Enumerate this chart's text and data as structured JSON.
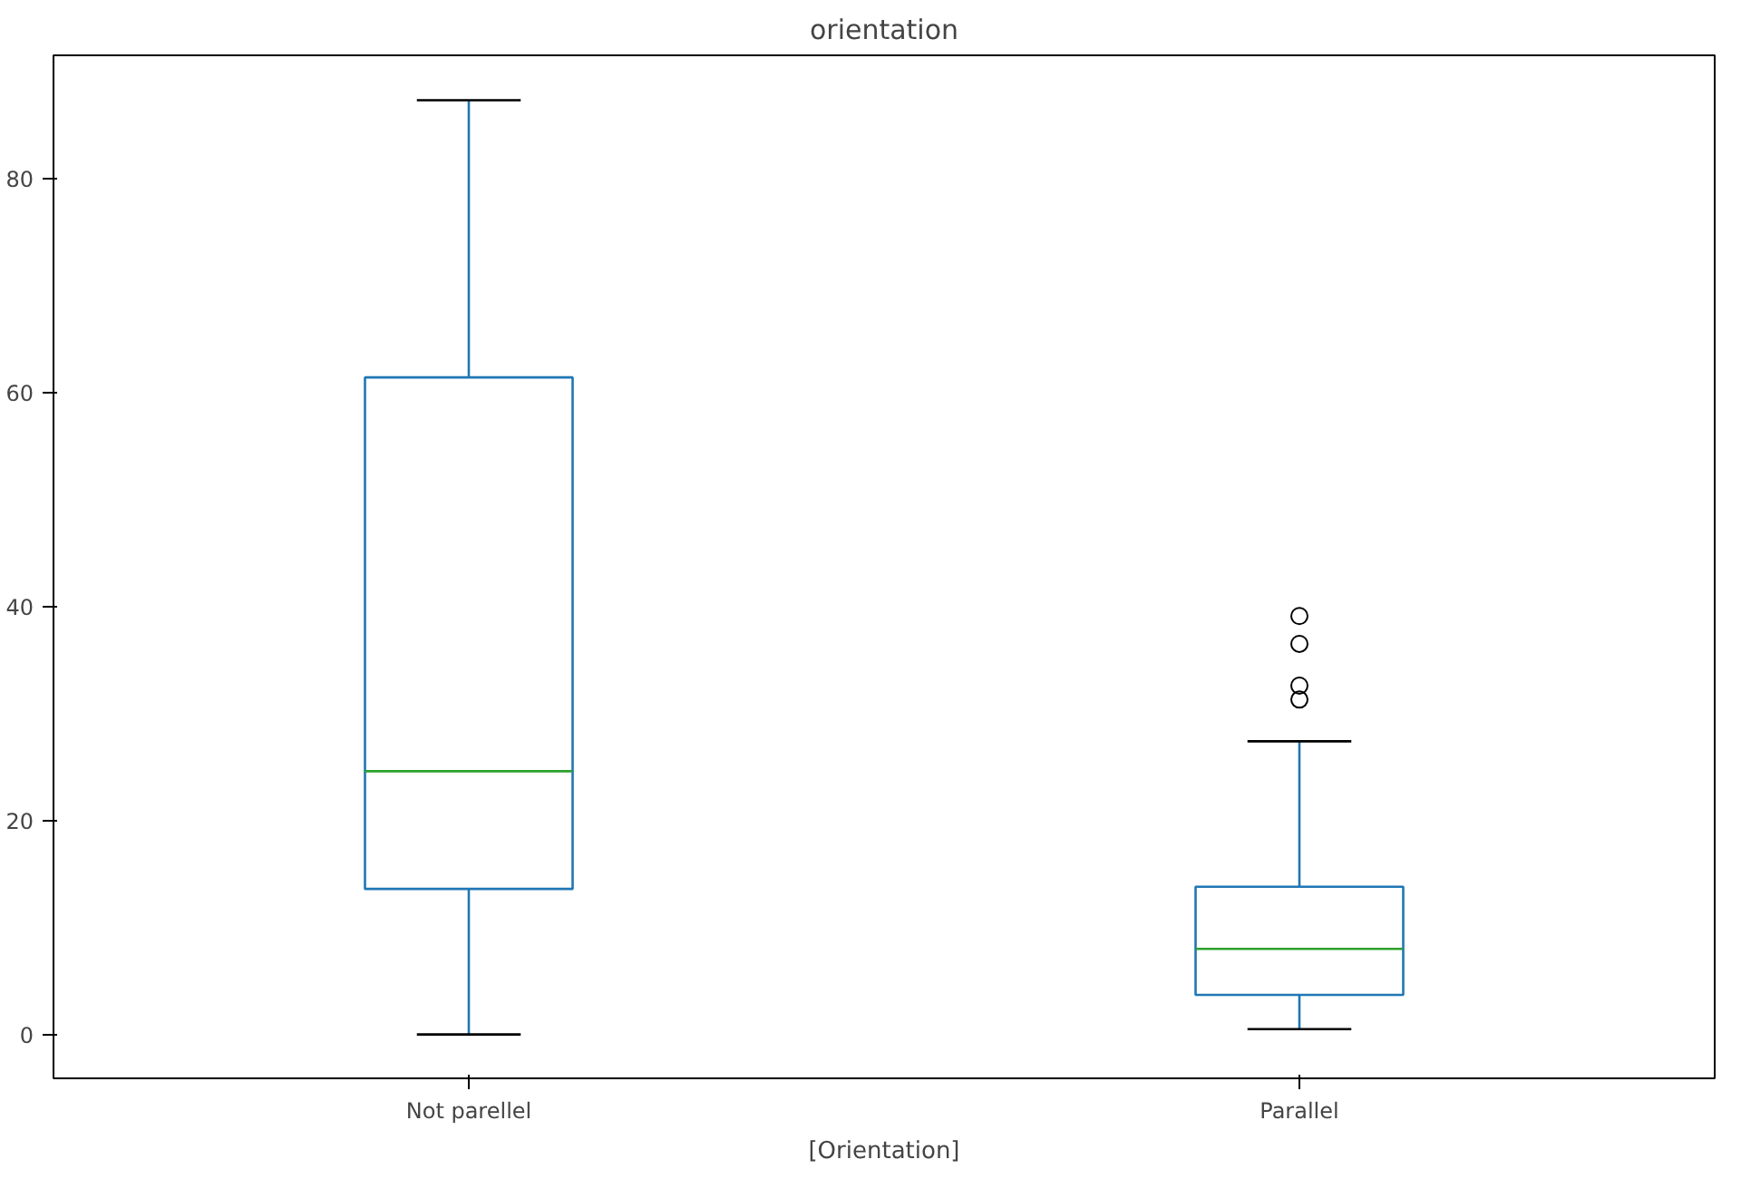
{
  "chart_data": {
    "type": "box",
    "title": "orientation",
    "xlabel": "[Orientation]",
    "categories": [
      "Not parellel",
      "Parallel"
    ],
    "boxes": [
      {
        "low": 0,
        "q1": 13.6,
        "median": 24.6,
        "q3": 61.4,
        "high": 87.3
      },
      {
        "low": 0.5,
        "q1": 3.7,
        "median": 8.0,
        "q3": 13.8,
        "high": 27.4,
        "outliers": [
          39.1,
          36.5,
          32.6,
          31.3
        ]
      }
    ],
    "color": "#1f77b4",
    "ylim": [
      -4.1,
      91.5
    ],
    "yticks": [
      0,
      20,
      40,
      60,
      80
    ],
    "grid": false
  }
}
